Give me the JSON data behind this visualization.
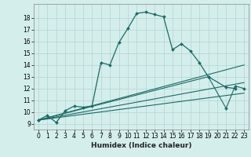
{
  "title": "",
  "xlabel": "Humidex (Indice chaleur)",
  "bg_color": "#d4eeec",
  "grid_color": "#b8d8d6",
  "line_color": "#1a6b65",
  "xlim": [
    -0.5,
    23.5
  ],
  "ylim": [
    8.5,
    19.2
  ],
  "xticks": [
    0,
    1,
    2,
    3,
    4,
    5,
    6,
    7,
    8,
    9,
    10,
    11,
    12,
    13,
    14,
    15,
    16,
    17,
    18,
    19,
    20,
    21,
    22,
    23
  ],
  "yticks": [
    9,
    10,
    11,
    12,
    13,
    14,
    15,
    16,
    17,
    18
  ],
  "line1_x": [
    0,
    1,
    2,
    3,
    4,
    5,
    6,
    7,
    8,
    9,
    10,
    11,
    12,
    13,
    14,
    15,
    16,
    17,
    18,
    19,
    21,
    22
  ],
  "line1_y": [
    9.3,
    9.7,
    9.1,
    10.1,
    10.5,
    10.4,
    10.5,
    14.2,
    14.0,
    15.9,
    17.1,
    18.4,
    18.5,
    18.3,
    18.1,
    15.3,
    15.8,
    15.2,
    14.2,
    13.0,
    12.1,
    12.0
  ],
  "line2_x": [
    0,
    19,
    21,
    22,
    23
  ],
  "line2_y": [
    9.3,
    13.0,
    10.3,
    12.2,
    12.0
  ],
  "line3_x": [
    0,
    23
  ],
  "line3_y": [
    9.3,
    14.0
  ],
  "line4_x": [
    0,
    23
  ],
  "line4_y": [
    9.3,
    12.5
  ],
  "line5_x": [
    0,
    23
  ],
  "line5_y": [
    9.3,
    11.6
  ],
  "font_size_label": 6.5,
  "font_size_tick": 5.5
}
